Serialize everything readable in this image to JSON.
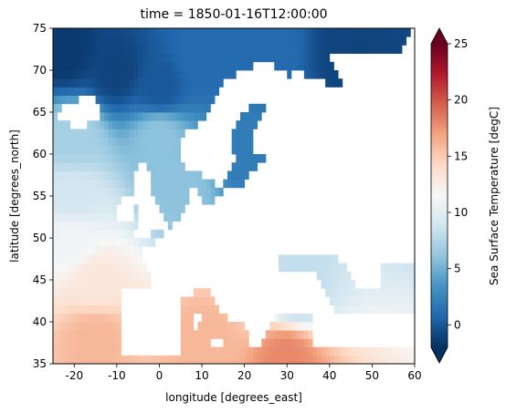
{
  "chart_data": {
    "type": "heatmap",
    "title": "time = 1850-01-16T12:00:00",
    "xlabel": "longitude [degrees_east]",
    "ylabel": "latitude [degrees_north]",
    "xlim": [
      -25,
      60
    ],
    "ylim": [
      35,
      75
    ],
    "xticks": [
      -20,
      -10,
      0,
      10,
      20,
      30,
      40,
      50,
      60
    ],
    "yticks": [
      35,
      40,
      45,
      50,
      55,
      60,
      65,
      70,
      75
    ],
    "colorbar": {
      "label": "Sea Surface Temperature [degC]",
      "range": [
        -2,
        25
      ],
      "ticks": [
        0,
        5,
        10,
        15,
        20,
        25
      ],
      "extend": "both",
      "colormap": "RdBu_r",
      "colors": [
        "#053061",
        "#2166ac",
        "#4393c3",
        "#92c5de",
        "#d1e5f0",
        "#f7f7f7",
        "#fddbc7",
        "#f4a582",
        "#d6604d",
        "#b2182b",
        "#67001f"
      ]
    },
    "sea_temperature_samples": [
      {
        "lon": -22,
        "lat": 72,
        "value": -1.5
      },
      {
        "lon": -10,
        "lat": 70,
        "value": -1.0
      },
      {
        "lon": 0,
        "lat": 68,
        "value": 0
      },
      {
        "lon": 10,
        "lat": 71,
        "value": 1
      },
      {
        "lon": 25,
        "lat": 72,
        "value": 1
      },
      {
        "lon": 45,
        "lat": 72,
        "value": -1
      },
      {
        "lon": -20,
        "lat": 62,
        "value": 7
      },
      {
        "lon": 0,
        "lat": 62,
        "value": 6
      },
      {
        "lon": 20,
        "lat": 60,
        "value": 2
      },
      {
        "lon": 5,
        "lat": 56,
        "value": 6
      },
      {
        "lon": -20,
        "lat": 55,
        "value": 9
      },
      {
        "lon": -20,
        "lat": 50,
        "value": 11
      },
      {
        "lon": -15,
        "lat": 45,
        "value": 13
      },
      {
        "lon": 32,
        "lat": 43,
        "value": 8
      },
      {
        "lon": -15,
        "lat": 38,
        "value": 16
      },
      {
        "lon": 10,
        "lat": 38,
        "value": 16
      },
      {
        "lon": 30,
        "lat": 36,
        "value": 18
      }
    ]
  }
}
